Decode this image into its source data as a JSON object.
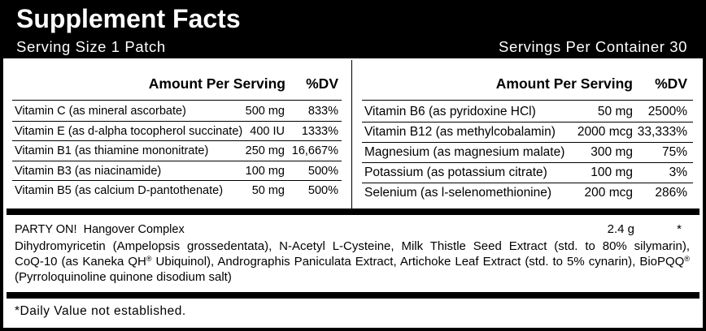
{
  "header": {
    "title": "Supplement Facts",
    "serving_size": "Serving Size 1 Patch",
    "servings_per_container": "Servings Per Container 30"
  },
  "column_headers": {
    "amount": "Amount Per Serving",
    "dv": "%DV"
  },
  "left_nutrients": [
    {
      "name": "Vitamin C (as mineral ascorbate)",
      "amount": "500 mg",
      "dv": "833%"
    },
    {
      "name": "Vitamin E (as d-alpha tocopherol succinate)",
      "amount": "400 IU",
      "dv": "1333%"
    },
    {
      "name": "Vitamin B1 (as thiamine mononitrate)",
      "amount": "250 mg",
      "dv": "16,667%"
    },
    {
      "name": "Vitamin B3 (as niacinamide)",
      "amount": "100 mg",
      "dv": "500%"
    },
    {
      "name": "Vitamin B5 (as calcium D-pantothenate)",
      "amount": "50 mg",
      "dv": "500%"
    }
  ],
  "right_nutrients": [
    {
      "name": "Vitamin B6 (as pyridoxine HCl)",
      "amount": "50 mg",
      "dv": "2500%"
    },
    {
      "name": "Vitamin B12 (as methylcobalamin)",
      "amount": "2000 mcg",
      "dv": "33,333%"
    },
    {
      "name": "Magnesium (as magnesium malate)",
      "amount": "300 mg",
      "dv": "75%"
    },
    {
      "name": "Potassium (as potassium citrate)",
      "amount": "100 mg",
      "dv": "3%"
    },
    {
      "name": "Selenium (as l-selenomethionine)",
      "amount": "200 mcg",
      "dv": "286%"
    }
  ],
  "blend": {
    "name": "PARTY ON!  Hangover Complex",
    "amount": "2.4 g",
    "dv": "*",
    "ingredients_lines": [
      "Dihydromyricetin (Ampelopsis grossedentata), N-Acetyl L-Cysteine, Milk Thistle Seed Extract (std. to 80% silymarin),",
      "CoQ-10 (as Kaneka QH® Ubiquinol), Andrographis Paniculata Extract, Artichoke Leaf Extract (std. to 5% cynarin), BioPQQ®",
      "(Pyrroloquinoline quinone disodium salt)"
    ]
  },
  "footnote": "*Daily Value not established.",
  "colors": {
    "ink": "#000000",
    "paper": "#ffffff"
  }
}
